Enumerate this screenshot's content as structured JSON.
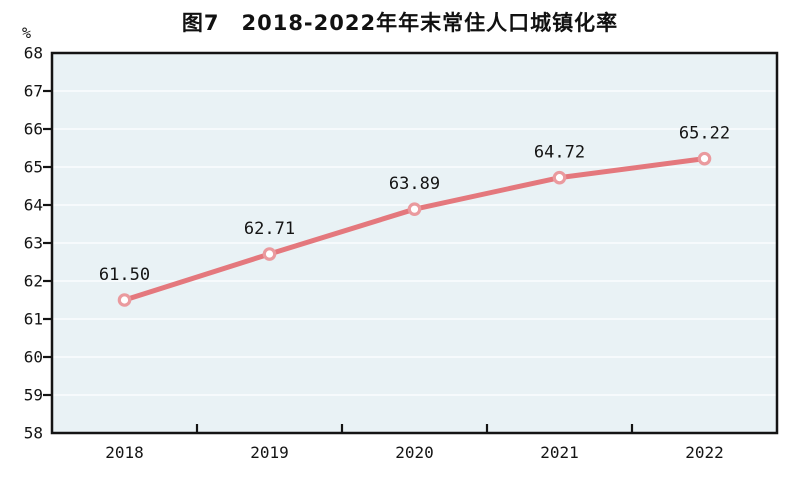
{
  "header": {
    "title": "图7　2018-2022年年末常住人口城镇化率",
    "unit_label": "%"
  },
  "chart_data": {
    "type": "line",
    "title": "图7　2018-2022年年末常住人口城镇化率",
    "unit": "%",
    "categories": [
      "2018",
      "2019",
      "2020",
      "2021",
      "2022"
    ],
    "values": [
      61.5,
      62.71,
      63.89,
      64.72,
      65.22
    ],
    "point_labels": [
      "61.50",
      "62.71",
      "63.89",
      "64.72",
      "65.22"
    ],
    "ylim": [
      58,
      68
    ],
    "y_ticks": [
      58,
      59,
      60,
      61,
      62,
      63,
      64,
      65,
      66,
      67,
      68
    ],
    "xlabel": "",
    "ylabel": "%",
    "grid": "horizontal",
    "legend": "none",
    "colors": {
      "line": "#e4787d",
      "marker_ring": "#ea9a9e",
      "marker_fill": "#ffffff",
      "plot_bg": "#e9f2f5",
      "grid": "#fafdfe",
      "axis": "#141414",
      "text": "#141414"
    }
  }
}
